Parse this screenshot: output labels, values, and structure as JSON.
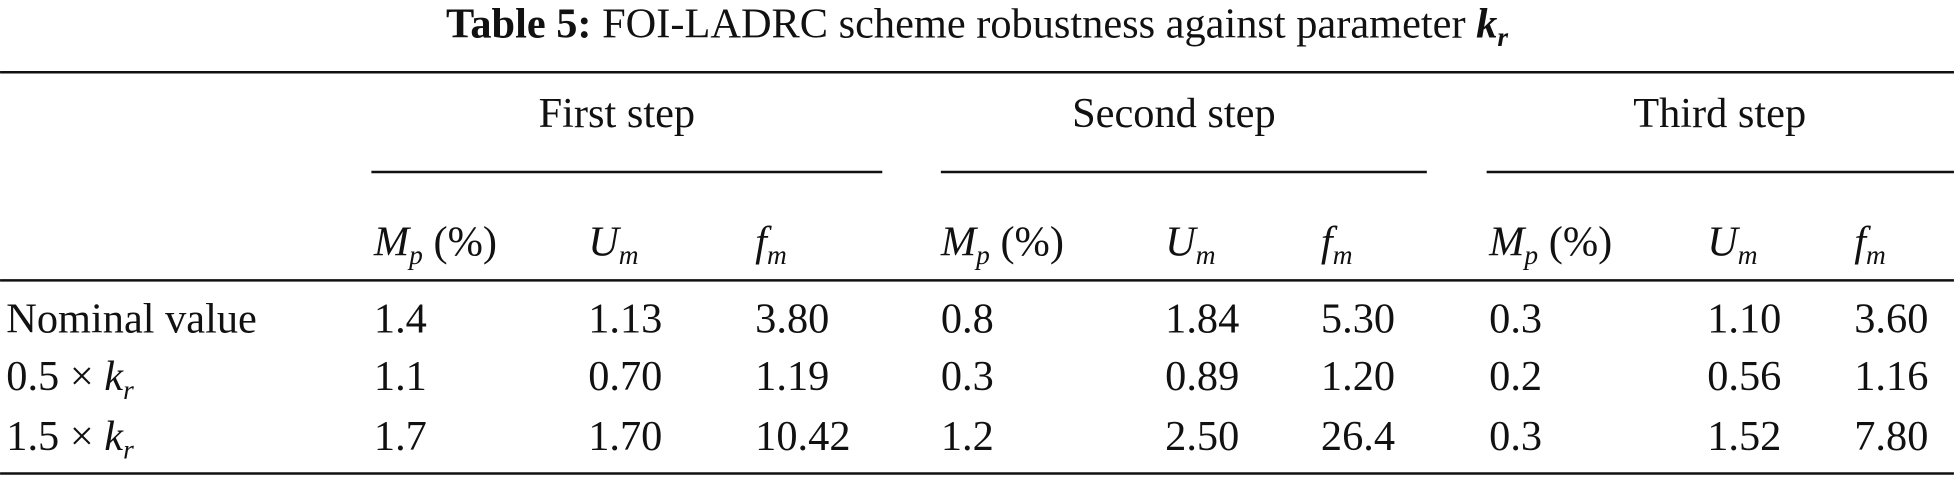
{
  "title": {
    "label": "Table 5:",
    "text": "FOI-LADRC scheme robustness against parameter",
    "symbol": "k",
    "subscript": "r"
  },
  "table": {
    "groups": [
      "First step",
      "Second step",
      "Third step"
    ],
    "columns": [
      {
        "symbol": "M",
        "subscript": "p",
        "unit": "(%)"
      },
      {
        "symbol": "U",
        "subscript": "m"
      },
      {
        "symbol": "f",
        "subscript": "m"
      }
    ],
    "rows": [
      {
        "label": "Nominal value",
        "cells": [
          "1.4",
          "1.13",
          "3.80",
          "0.8",
          "1.84",
          "5.30",
          "0.3",
          "1.10",
          "3.60"
        ]
      },
      {
        "factor": "0.5 ×",
        "symbol": "k",
        "subscript": "r",
        "cells": [
          "1.1",
          "0.70",
          "1.19",
          "0.3",
          "0.89",
          "1.20",
          "0.2",
          "0.56",
          "1.16"
        ]
      },
      {
        "factor": "1.5 ×",
        "symbol": "k",
        "subscript": "r",
        "cells": [
          "1.7",
          "1.70",
          "10.42",
          "1.2",
          "2.50",
          "26.4",
          "0.3",
          "1.52",
          "7.80"
        ]
      }
    ]
  }
}
